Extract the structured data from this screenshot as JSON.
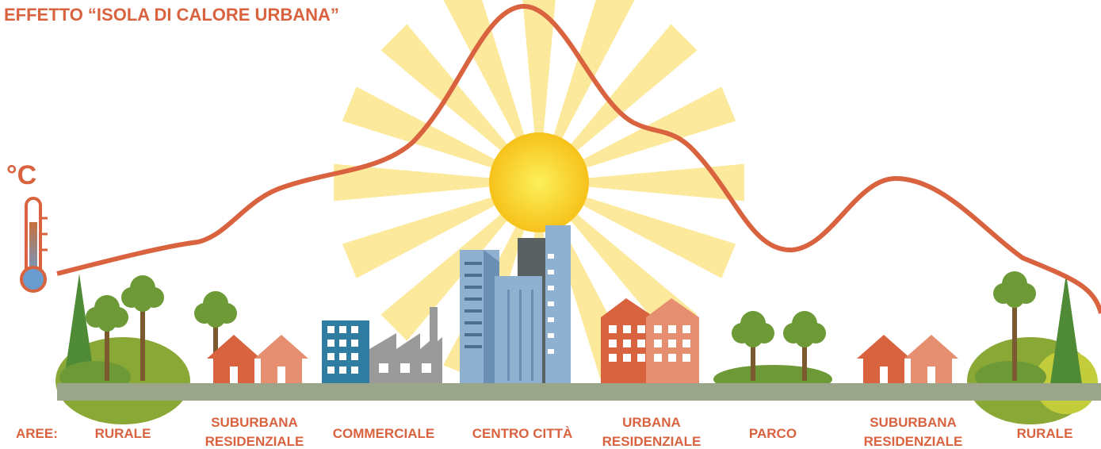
{
  "header": {
    "title": "EFFETTO “ISOLA DI CALORE URBANA”"
  },
  "unit": "°C",
  "areas_label": "AREE:",
  "areas": [
    {
      "lines": [
        "RURALE"
      ]
    },
    {
      "lines": [
        "SUBURBANA",
        "RESIDENZIALE"
      ]
    },
    {
      "lines": [
        "COMMERCIALE"
      ]
    },
    {
      "lines": [
        "CENTRO CITTÀ"
      ]
    },
    {
      "lines": [
        "URBANA",
        "RESIDENZIALE"
      ]
    },
    {
      "lines": [
        "PARCO"
      ]
    },
    {
      "lines": [
        "SUBURBANA",
        "RESIDENZIALE"
      ]
    },
    {
      "lines": [
        "RURALE"
      ]
    }
  ]
}
